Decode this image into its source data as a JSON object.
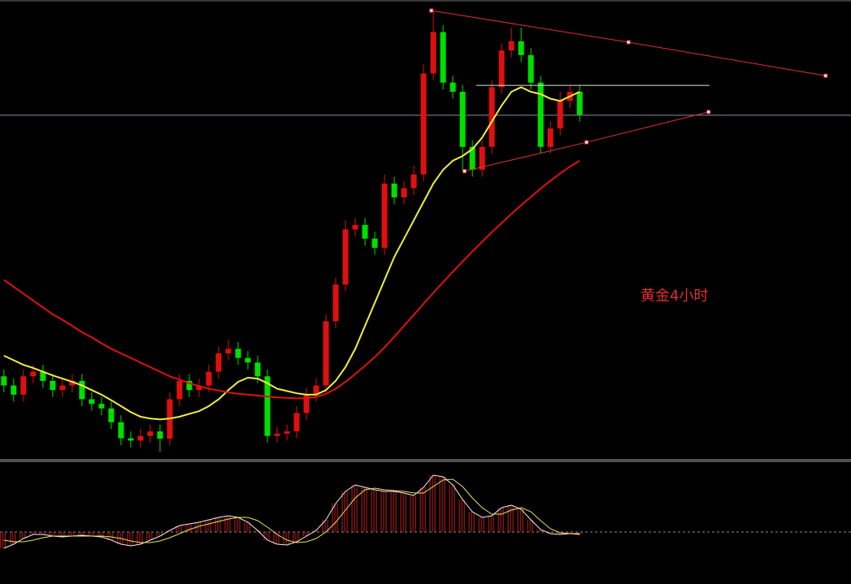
{
  "chart_data": {
    "type": "candlestick",
    "annotation": "黄金4小时",
    "xlim": [
      -0.4,
      86.8
    ],
    "ylim": [
      0,
      100
    ],
    "up_color": "#e01010",
    "down_color": "#00e000",
    "open": [
      18,
      16,
      14,
      18,
      19,
      17,
      15,
      16,
      17,
      13,
      12,
      11,
      8,
      4.5,
      4,
      5,
      6,
      4.4,
      13,
      17,
      15,
      16,
      19,
      23,
      24,
      22,
      21,
      18,
      5,
      5.5,
      6,
      10,
      14,
      16,
      30,
      38,
      50,
      51,
      48,
      46,
      60,
      57,
      59,
      62,
      84,
      93,
      82,
      80,
      68,
      63,
      68,
      81,
      89,
      91,
      88,
      82,
      68,
      72,
      78,
      80
    ],
    "high": [
      19.5,
      17.5,
      19.5,
      20.5,
      20.5,
      18.5,
      17.5,
      18.5,
      18.5,
      14.5,
      13.5,
      12.5,
      9.5,
      6,
      6.5,
      7.5,
      7.5,
      14.5,
      18.5,
      18.5,
      17.5,
      20.5,
      24.5,
      26,
      25.5,
      23.5,
      22.5,
      19.5,
      7,
      7.5,
      11.5,
      15.5,
      17.5,
      31.5,
      39.5,
      52,
      52.5,
      52.5,
      49.5,
      62,
      61.5,
      60.5,
      64,
      86,
      97.7,
      94.5,
      83.5,
      81.5,
      69.5,
      69.5,
      82.5,
      90.5,
      94,
      94,
      89.5,
      83.5,
      73.5,
      80,
      81.5,
      81.5
    ],
    "low": [
      14.5,
      12.5,
      12.5,
      16.5,
      15.5,
      13.5,
      13.5,
      14.5,
      11.5,
      10.5,
      9.5,
      6.5,
      3,
      2.5,
      2.5,
      3.5,
      1.5,
      2.9,
      11.5,
      13.5,
      13.5,
      14.5,
      17.5,
      21.5,
      20.5,
      19.5,
      16.5,
      3.5,
      3.5,
      4,
      4.5,
      8.5,
      12.5,
      14.5,
      28.5,
      36.5,
      48.5,
      46.5,
      44.5,
      44.5,
      55.5,
      55.5,
      57.5,
      60.5,
      82.5,
      80.5,
      78.5,
      62.7,
      61.5,
      61.5,
      66.5,
      79.5,
      87.5,
      86.5,
      80.5,
      66.5,
      66.5,
      70.5,
      76.5,
      73.5
    ],
    "close": [
      16,
      14,
      18,
      19,
      17,
      15,
      16,
      17,
      13,
      12,
      11,
      8,
      4.5,
      4,
      5,
      6,
      4.4,
      13,
      17,
      15,
      16,
      19,
      23,
      24,
      22,
      21,
      18,
      5,
      5.5,
      6,
      10,
      14,
      16,
      30,
      38,
      50,
      51,
      48,
      46,
      60,
      57,
      59,
      62,
      84,
      93,
      82,
      80,
      68,
      63,
      68,
      81,
      89,
      91,
      88,
      82,
      68,
      72,
      78,
      80,
      75
    ],
    "series": [
      {
        "color": "#f0f040",
        "values": [
          22.5,
          21.5,
          20.5,
          19.8,
          19,
          18.2,
          17.5,
          16.8,
          16,
          15,
          14,
          12.8,
          11.5,
          10.2,
          9.2,
          8.8,
          8.6,
          8.8,
          9.2,
          9.8,
          10.4,
          11.5,
          13,
          15,
          16.8,
          17.7,
          17.5,
          16.5,
          15.3,
          14.8,
          14.3,
          14,
          14,
          15,
          17,
          20,
          24,
          29,
          34,
          39,
          44,
          48,
          52,
          56,
          60,
          63,
          65,
          66,
          67.5,
          70,
          73.5,
          77,
          80,
          81,
          80,
          79.5,
          78.5,
          78,
          79,
          80
        ]
      },
      {
        "color": "#e01010",
        "values": [
          39,
          37.5,
          36,
          34.5,
          33,
          31.5,
          30.3,
          29,
          27.6,
          26.5,
          25.2,
          24,
          23,
          22,
          21,
          20,
          19,
          18,
          17.3,
          16.5,
          15.9,
          15.3,
          14.9,
          14.5,
          14.2,
          14,
          13.8,
          13.6,
          13.4,
          13.3,
          13.2,
          13.2,
          13.5,
          14.2,
          15.3,
          16.8,
          18.5,
          20.3,
          22.2,
          24.3,
          26.6,
          29,
          31.4,
          33.8,
          36.2,
          38.5,
          40.8,
          43,
          45.2,
          47.3,
          49.4,
          51.4,
          53.4,
          55.3,
          57.1,
          58.9,
          60.6,
          62.2,
          63.7,
          65
        ]
      }
    ],
    "reference_line": {
      "value": 74.9,
      "color": "#8890a0"
    },
    "trendlines": [
      {
        "color": "#e03030",
        "x": [
          43.8,
          64,
          84.2
        ],
        "y": [
          97.7,
          90.8,
          83.5
        ]
      },
      {
        "color": "#e03030",
        "x": [
          47.2,
          59.7,
          72.2
        ],
        "y": [
          62.7,
          69,
          75.6
        ]
      },
      {
        "color": "#e0e0e0",
        "x": [
          48.4,
          72.3
        ],
        "y": [
          81.4,
          81.4
        ]
      }
    ],
    "oscillator": {
      "ylim": [
        -64,
        87
      ],
      "histogram_color": "#c02020",
      "histogram": [
        -20,
        -15,
        -8,
        -3,
        -3,
        -5,
        -6,
        -5,
        -4,
        -5,
        -6,
        -10,
        -15,
        -17,
        -15,
        -10,
        -5,
        2,
        8,
        10,
        12,
        15,
        18,
        20,
        18,
        12,
        2,
        -10,
        -15,
        -16,
        -12,
        -5,
        2,
        15,
        35,
        50,
        58,
        55,
        52,
        50,
        50,
        48,
        45,
        55,
        70,
        68,
        58,
        40,
        25,
        18,
        20,
        30,
        33,
        28,
        15,
        3,
        -2,
        -3,
        -2,
        -3
      ],
      "series": [
        {
          "color": "#f0f0f0",
          "values": [
            -20,
            -15,
            -8,
            -3,
            -3,
            -5,
            -6,
            -5,
            -4,
            -5,
            -6,
            -10,
            -15,
            -17,
            -15,
            -10,
            -5,
            2,
            8,
            10,
            12,
            15,
            18,
            20,
            18,
            12,
            2,
            -10,
            -15,
            -16,
            -12,
            -5,
            2,
            15,
            35,
            50,
            58,
            55,
            52,
            50,
            50,
            48,
            45,
            55,
            70,
            68,
            58,
            40,
            25,
            18,
            20,
            30,
            33,
            28,
            15,
            3,
            -2,
            -3,
            -2,
            -3
          ]
        },
        {
          "color": "#f0e060",
          "values": [
            -10,
            -12,
            -12,
            -10,
            -7,
            -5,
            -5,
            -5,
            -5,
            -5,
            -5,
            -6,
            -8,
            -11,
            -13,
            -13,
            -11,
            -7,
            -2,
            3,
            7,
            10,
            13,
            16,
            18,
            18,
            14,
            6,
            -3,
            -10,
            -13,
            -12,
            -8,
            0,
            12,
            27,
            42,
            52,
            54,
            52,
            51,
            50,
            48,
            48,
            56,
            64,
            65,
            56,
            42,
            30,
            22,
            22,
            27,
            30,
            25,
            14,
            4,
            -1,
            -2,
            -2
          ]
        }
      ]
    }
  }
}
